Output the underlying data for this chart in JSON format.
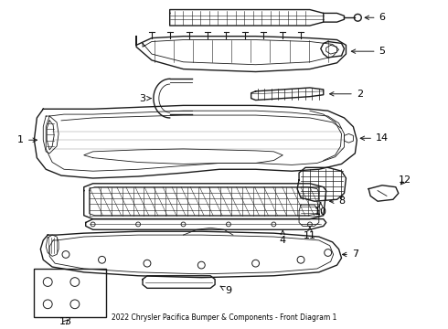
{
  "title": "2022 Chrysler Pacifica Bumper & Components - Front Diagram 1",
  "background_color": "#ffffff",
  "line_color": "#1a1a1a",
  "text_color": "#000000",
  "fig_width": 4.9,
  "fig_height": 3.6,
  "dpi": 100
}
